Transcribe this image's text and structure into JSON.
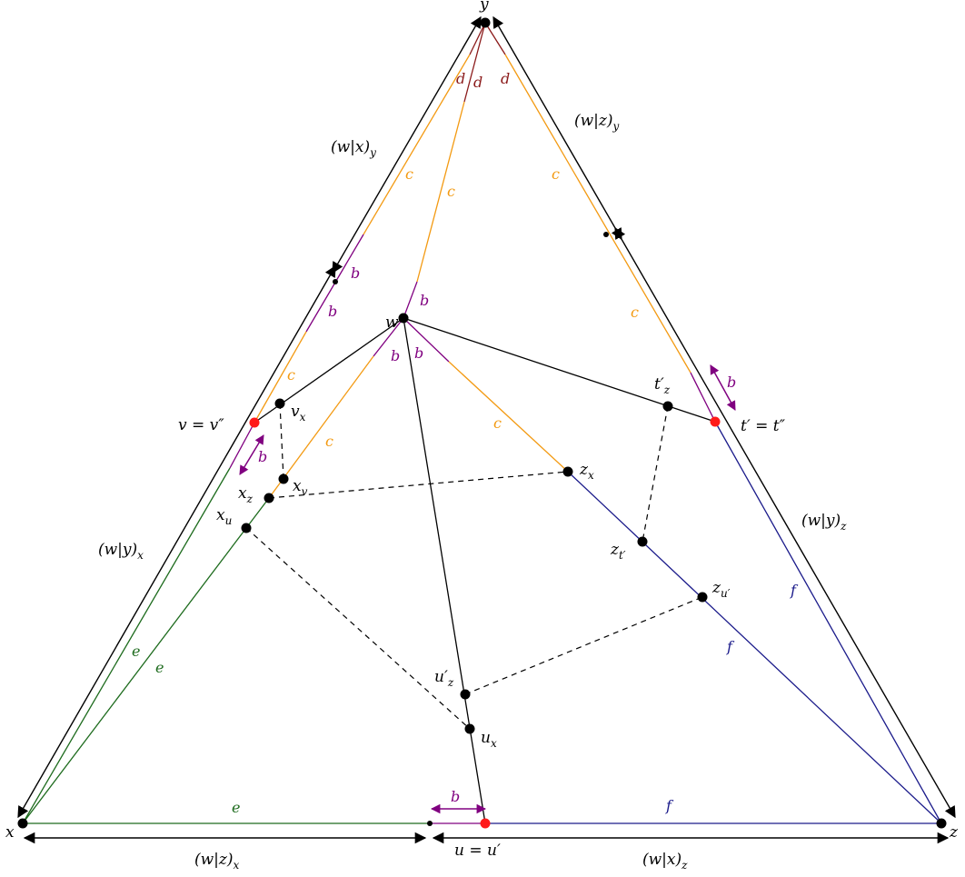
{
  "colors": {
    "black": "#000000",
    "red_point": "#ff1a1a",
    "dark_red": "#8b1a1a",
    "orange": "#f39a12",
    "purple": "#800080",
    "green": "#1d6b1d",
    "blue": "#1a1a8a"
  },
  "labels": {
    "y": "y",
    "x": "x",
    "z": "z",
    "w": "w",
    "u": "u = u′",
    "v": "v = v″",
    "t": "t′ = t″",
    "vx": "v",
    "vx_sub": "x",
    "xv": "x",
    "xv_sub": "v",
    "xz": "x",
    "xz_sub": "z",
    "xu": "x",
    "xu_sub": "u",
    "zx": "z",
    "zx_sub": "x",
    "zt": "z",
    "zt_sub": "t′",
    "zu": "z",
    "zu_sub": "u′",
    "tz": "t′",
    "tz_sub": "z",
    "uz": "u′",
    "uz_sub": "z",
    "ux": "u",
    "ux_sub": "x"
  },
  "gromov": {
    "wx_y": "(w|x)",
    "wx_y_sub": "y",
    "wz_y": "(w|z)",
    "wz_y_sub": "y",
    "wy_x": "(w|y)",
    "wy_x_sub": "x",
    "wy_z": "(w|y)",
    "wy_z_sub": "z",
    "wz_x": "(w|z)",
    "wz_x_sub": "x",
    "wx_z": "(w|x)",
    "wx_z_sub": "z"
  },
  "segment_labels": {
    "b": "b",
    "c": "c",
    "d": "d",
    "e": "e",
    "f": "f"
  }
}
